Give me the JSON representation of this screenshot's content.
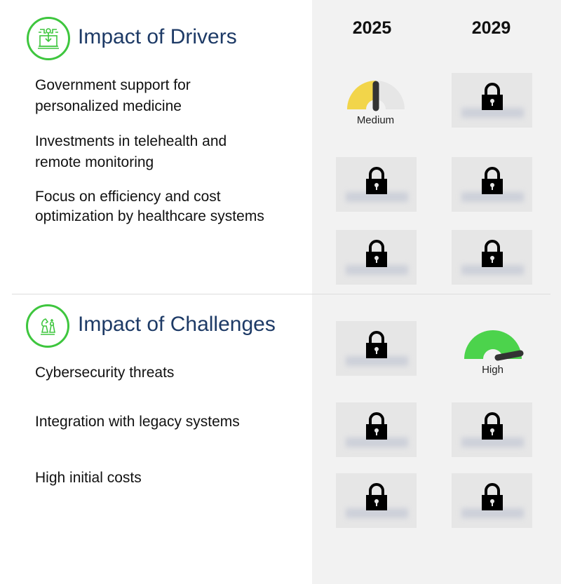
{
  "drivers": {
    "title": "Impact of Drivers",
    "icon": "laptop-circuit-icon",
    "items": [
      {
        "label": "Government support for personalized medicine"
      },
      {
        "label": "Investments in telehealth and remote monitoring"
      },
      {
        "label": "Focus on efficiency and cost optimization by healthcare systems"
      }
    ]
  },
  "challenges": {
    "title": "Impact of Challenges",
    "icon": "chess-pieces-icon",
    "items": [
      {
        "label": "Cybersecurity threats"
      },
      {
        "label": "Integration with legacy systems"
      },
      {
        "label": "High initial costs"
      }
    ]
  },
  "years": [
    "2025",
    "2029"
  ],
  "gauges": {
    "driver1_2025": {
      "label": "Medium",
      "color": "#f2d54a",
      "level": 0.5
    },
    "challenge1_2029": {
      "label": "High",
      "color": "#4cd34c",
      "level": 0.95
    }
  },
  "colors": {
    "accent": "#3ec63e",
    "title": "#1d3a66"
  }
}
